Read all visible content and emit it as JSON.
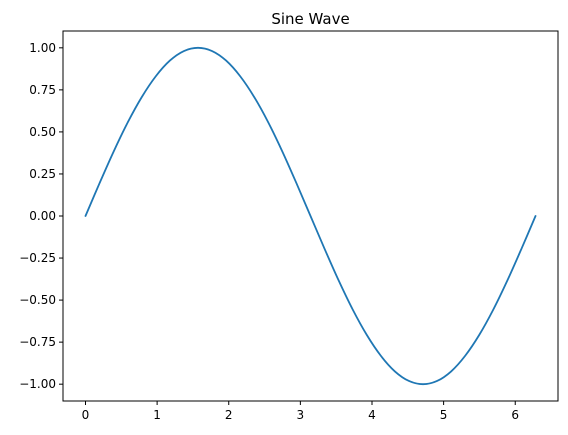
{
  "chart_data": {
    "type": "line",
    "title": "Sine Wave",
    "xlabel": "",
    "ylabel": "",
    "xlim": [
      -0.314,
      6.597
    ],
    "ylim": [
      -1.1,
      1.1
    ],
    "x_ticks": [
      0,
      1,
      2,
      3,
      4,
      5,
      6
    ],
    "x_tick_labels": [
      "0",
      "1",
      "2",
      "3",
      "4",
      "5",
      "6"
    ],
    "y_ticks": [
      1.0,
      0.75,
      0.5,
      0.25,
      0.0,
      -0.25,
      -0.5,
      -0.75,
      -1.0
    ],
    "y_tick_labels": [
      "1.00",
      "0.75",
      "0.50",
      "0.25",
      "0.00",
      "−0.25",
      "−0.50",
      "−0.75",
      "−1.00"
    ],
    "grid": false,
    "colors": {
      "line": "#1f77b4",
      "axes": "#000000",
      "background": "#ffffff"
    },
    "series": [
      {
        "x": [
          0.0,
          0.1963,
          0.3927,
          0.589,
          0.7854,
          0.9817,
          1.1781,
          1.3744,
          1.5708,
          1.7671,
          1.9635,
          2.1598,
          2.3562,
          2.5525,
          2.7489,
          2.9452,
          3.1416,
          3.3379,
          3.5343,
          3.7306,
          3.927,
          4.1233,
          4.3197,
          4.516,
          4.7124,
          4.9087,
          5.1051,
          5.3014,
          5.4978,
          5.6941,
          5.8905,
          6.0868,
          6.2832
        ],
        "values": [
          0.0,
          0.195,
          0.383,
          0.556,
          0.707,
          0.831,
          0.924,
          0.981,
          1.0,
          0.981,
          0.924,
          0.831,
          0.707,
          0.556,
          0.383,
          0.195,
          0.0,
          -0.195,
          -0.383,
          -0.556,
          -0.707,
          -0.831,
          -0.924,
          -0.981,
          -1.0,
          -0.981,
          -0.924,
          -0.831,
          -0.707,
          -0.556,
          -0.383,
          -0.195,
          0.0
        ]
      }
    ]
  }
}
